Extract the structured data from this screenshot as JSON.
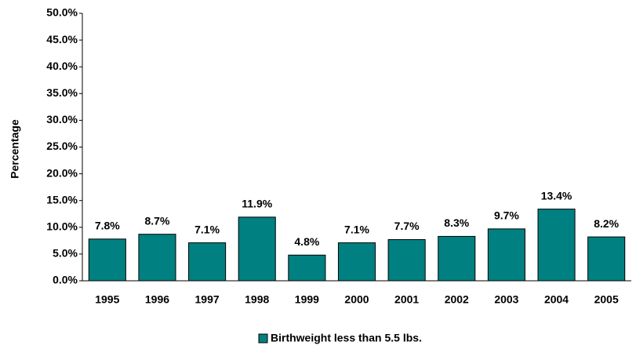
{
  "chart_data": {
    "type": "bar",
    "y_label": "Percentage",
    "categories": [
      "1995",
      "1996",
      "1997",
      "1998",
      "1999",
      "2000",
      "2001",
      "2002",
      "2003",
      "2004",
      "2005"
    ],
    "series": [
      {
        "name": "Birthweight less than 5.5 lbs.",
        "color": "#008080",
        "values": [
          7.8,
          8.7,
          7.1,
          11.9,
          4.8,
          7.1,
          7.7,
          8.3,
          9.7,
          13.4,
          8.2
        ],
        "value_labels": [
          "7.8%",
          "8.7%",
          "7.1%",
          "11.9%",
          "4.8%",
          "7.1%",
          "7.7%",
          "8.3%",
          "9.7%",
          "13.4%",
          "8.2%"
        ]
      }
    ],
    "ylim": [
      0,
      50
    ],
    "yticks": [
      {
        "value": 0,
        "label": "0.0%"
      },
      {
        "value": 5,
        "label": "5.0%"
      },
      {
        "value": 10,
        "label": "10.0%"
      },
      {
        "value": 15,
        "label": "15.0%"
      },
      {
        "value": 20,
        "label": "20.0%"
      },
      {
        "value": 25,
        "label": "25.0%"
      },
      {
        "value": 30,
        "label": "30.0%"
      },
      {
        "value": 35,
        "label": "35.0%"
      },
      {
        "value": 40,
        "label": "40.0%"
      },
      {
        "value": 45,
        "label": "45.0%"
      },
      {
        "value": 50,
        "label": "50.0%"
      }
    ],
    "grid": false,
    "legend": "bottom"
  }
}
